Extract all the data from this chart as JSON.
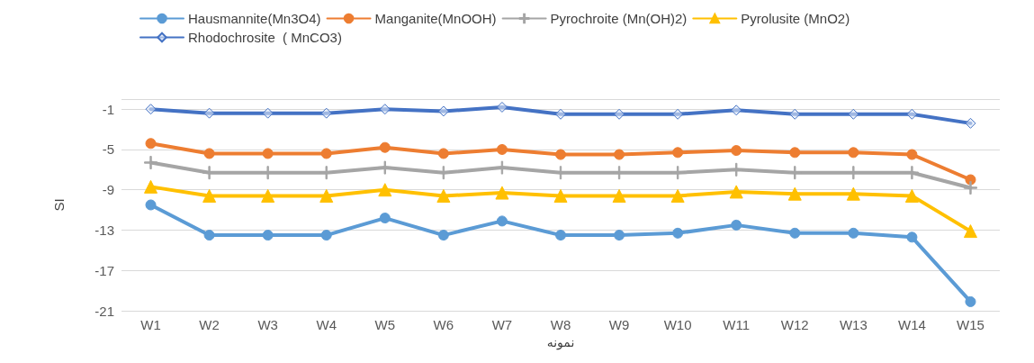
{
  "chart_data": {
    "type": "line",
    "xlabel": "نمونه",
    "ylabel": "SI",
    "categories": [
      "W1",
      "W2",
      "W3",
      "W4",
      "W5",
      "W6",
      "W7",
      "W8",
      "W9",
      "W10",
      "W11",
      "W12",
      "W13",
      "W14",
      "W15"
    ],
    "series": [
      {
        "name": "Hausmannite(Mn3O4)",
        "color": "#5b9bd5",
        "marker": "circle",
        "values": [
          -10.5,
          -13.5,
          -13.5,
          -13.5,
          -11.8,
          -13.5,
          -12.1,
          -13.5,
          -13.5,
          -13.3,
          -12.5,
          -13.3,
          -13.3,
          -13.7,
          -20.1
        ]
      },
      {
        "name": "Manganite(MnOOH)",
        "color": "#ed7d31",
        "marker": "circle",
        "values": [
          -4.4,
          -5.4,
          -5.4,
          -5.4,
          -4.8,
          -5.4,
          -5.0,
          -5.5,
          -5.5,
          -5.3,
          -5.1,
          -5.3,
          -5.3,
          -5.5,
          -8.0
        ]
      },
      {
        "name": "Pyrochroite (Mn(OH)2)",
        "color": "#a5a5a5",
        "marker": "cross",
        "values": [
          -6.3,
          -7.3,
          -7.3,
          -7.3,
          -6.8,
          -7.3,
          -6.8,
          -7.3,
          -7.3,
          -7.3,
          -7.0,
          -7.3,
          -7.3,
          -7.3,
          -8.8
        ]
      },
      {
        "name": "Pyrolusite (MnO2)",
        "color": "#ffc000",
        "marker": "triangle",
        "values": [
          -8.7,
          -9.6,
          -9.6,
          -9.6,
          -9.0,
          -9.6,
          -9.3,
          -9.6,
          -9.6,
          -9.6,
          -9.2,
          -9.4,
          -9.4,
          -9.6,
          -13.1
        ]
      },
      {
        "name": "Rhodochrosite  ( MnCO3)",
        "color": "#4472c4",
        "marker": "diamond",
        "values": [
          -1.0,
          -1.4,
          -1.4,
          -1.4,
          -1.0,
          -1.2,
          -0.8,
          -1.5,
          -1.5,
          -1.5,
          -1.1,
          -1.5,
          -1.5,
          -1.5,
          -2.4
        ]
      }
    ],
    "ylim": [
      -21,
      0
    ],
    "yticks": [
      -21,
      -17,
      -13,
      -9,
      -5,
      -1,
      {
        "value": 0,
        "label": null
      }
    ],
    "grid": "y",
    "legend": "top",
    "line_style": "solid"
  }
}
